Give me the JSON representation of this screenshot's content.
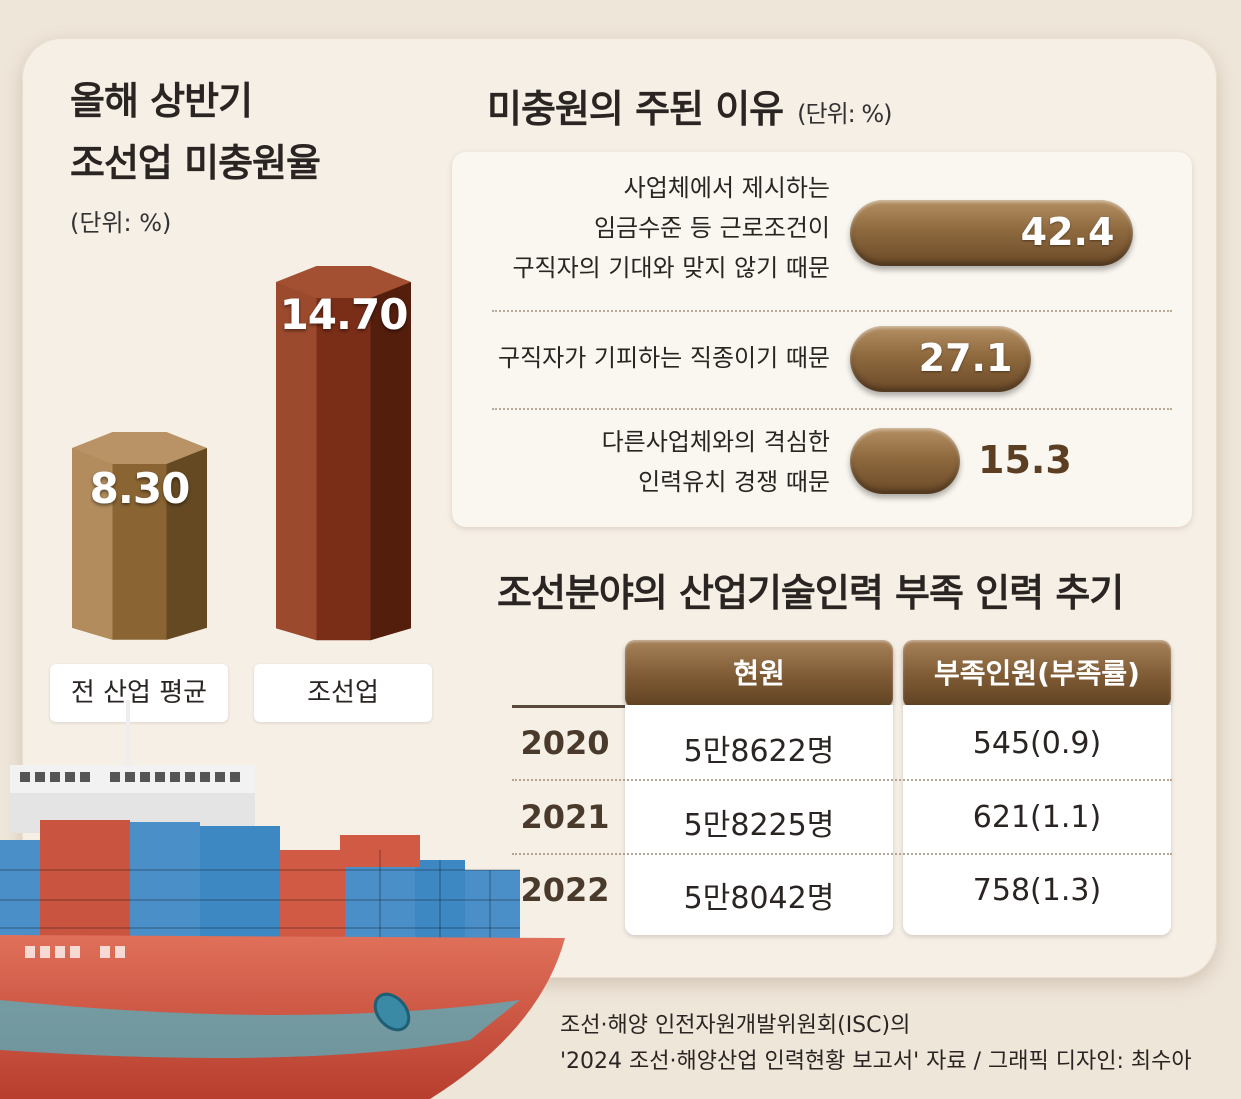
{
  "left_panel": {
    "title_line1": "올해 상반기",
    "title_line2": "조선업 미충원율",
    "unit": "(단위: %)"
  },
  "right_panel": {
    "title": "미충원의 주된 이유",
    "unit": "(단위: %)"
  },
  "table": {
    "title": "조선분야의 산업기술인력 부족 인력 추기",
    "headers": [
      "현원",
      "부족인원(부족률)"
    ],
    "rows": [
      {
        "year": "2020",
        "current": "5만8622명",
        "shortage": "545(0.9)"
      },
      {
        "year": "2021",
        "current": "5만8225명",
        "shortage": "621(1.1)"
      },
      {
        "year": "2022",
        "current": "5만8042명",
        "shortage": "758(1.3)"
      }
    ]
  },
  "source": {
    "line1": "조선·해양 인전자원개발위원회(ISC)의",
    "line2": "'2024 조선·해양산업 인력현황 보고서' 자료 / 그래픽 디자인: 최수아"
  },
  "colors": {
    "avg_bar": "#7f5a2c",
    "shipbuilding_bar": "#7a2e18",
    "reason_pill": "#8f6a3f",
    "table_header": "#7d5a34"
  },
  "chart_data": [
    {
      "type": "bar",
      "categories": [
        "전 산업 평균",
        "조선업"
      ],
      "values": [
        8.3,
        14.7
      ],
      "value_labels": [
        "8.30",
        "14.70"
      ],
      "ylim": [
        0,
        15
      ]
    },
    {
      "type": "bar",
      "orientation": "horizontal",
      "categories": [
        "사업체에서 제시하는\n임금수준 등 근로조건이\n구직자의 기대와 맞지 않기 때문",
        "구직자가 기피하는 직종이기 때문",
        "다른사업체와의 격심한\n인력유치 경쟁 때문"
      ],
      "values": [
        42.4,
        27.1,
        15.3
      ],
      "value_labels": [
        "42.4",
        "27.1",
        "15.3"
      ],
      "xlim": [
        0,
        45
      ]
    }
  ]
}
